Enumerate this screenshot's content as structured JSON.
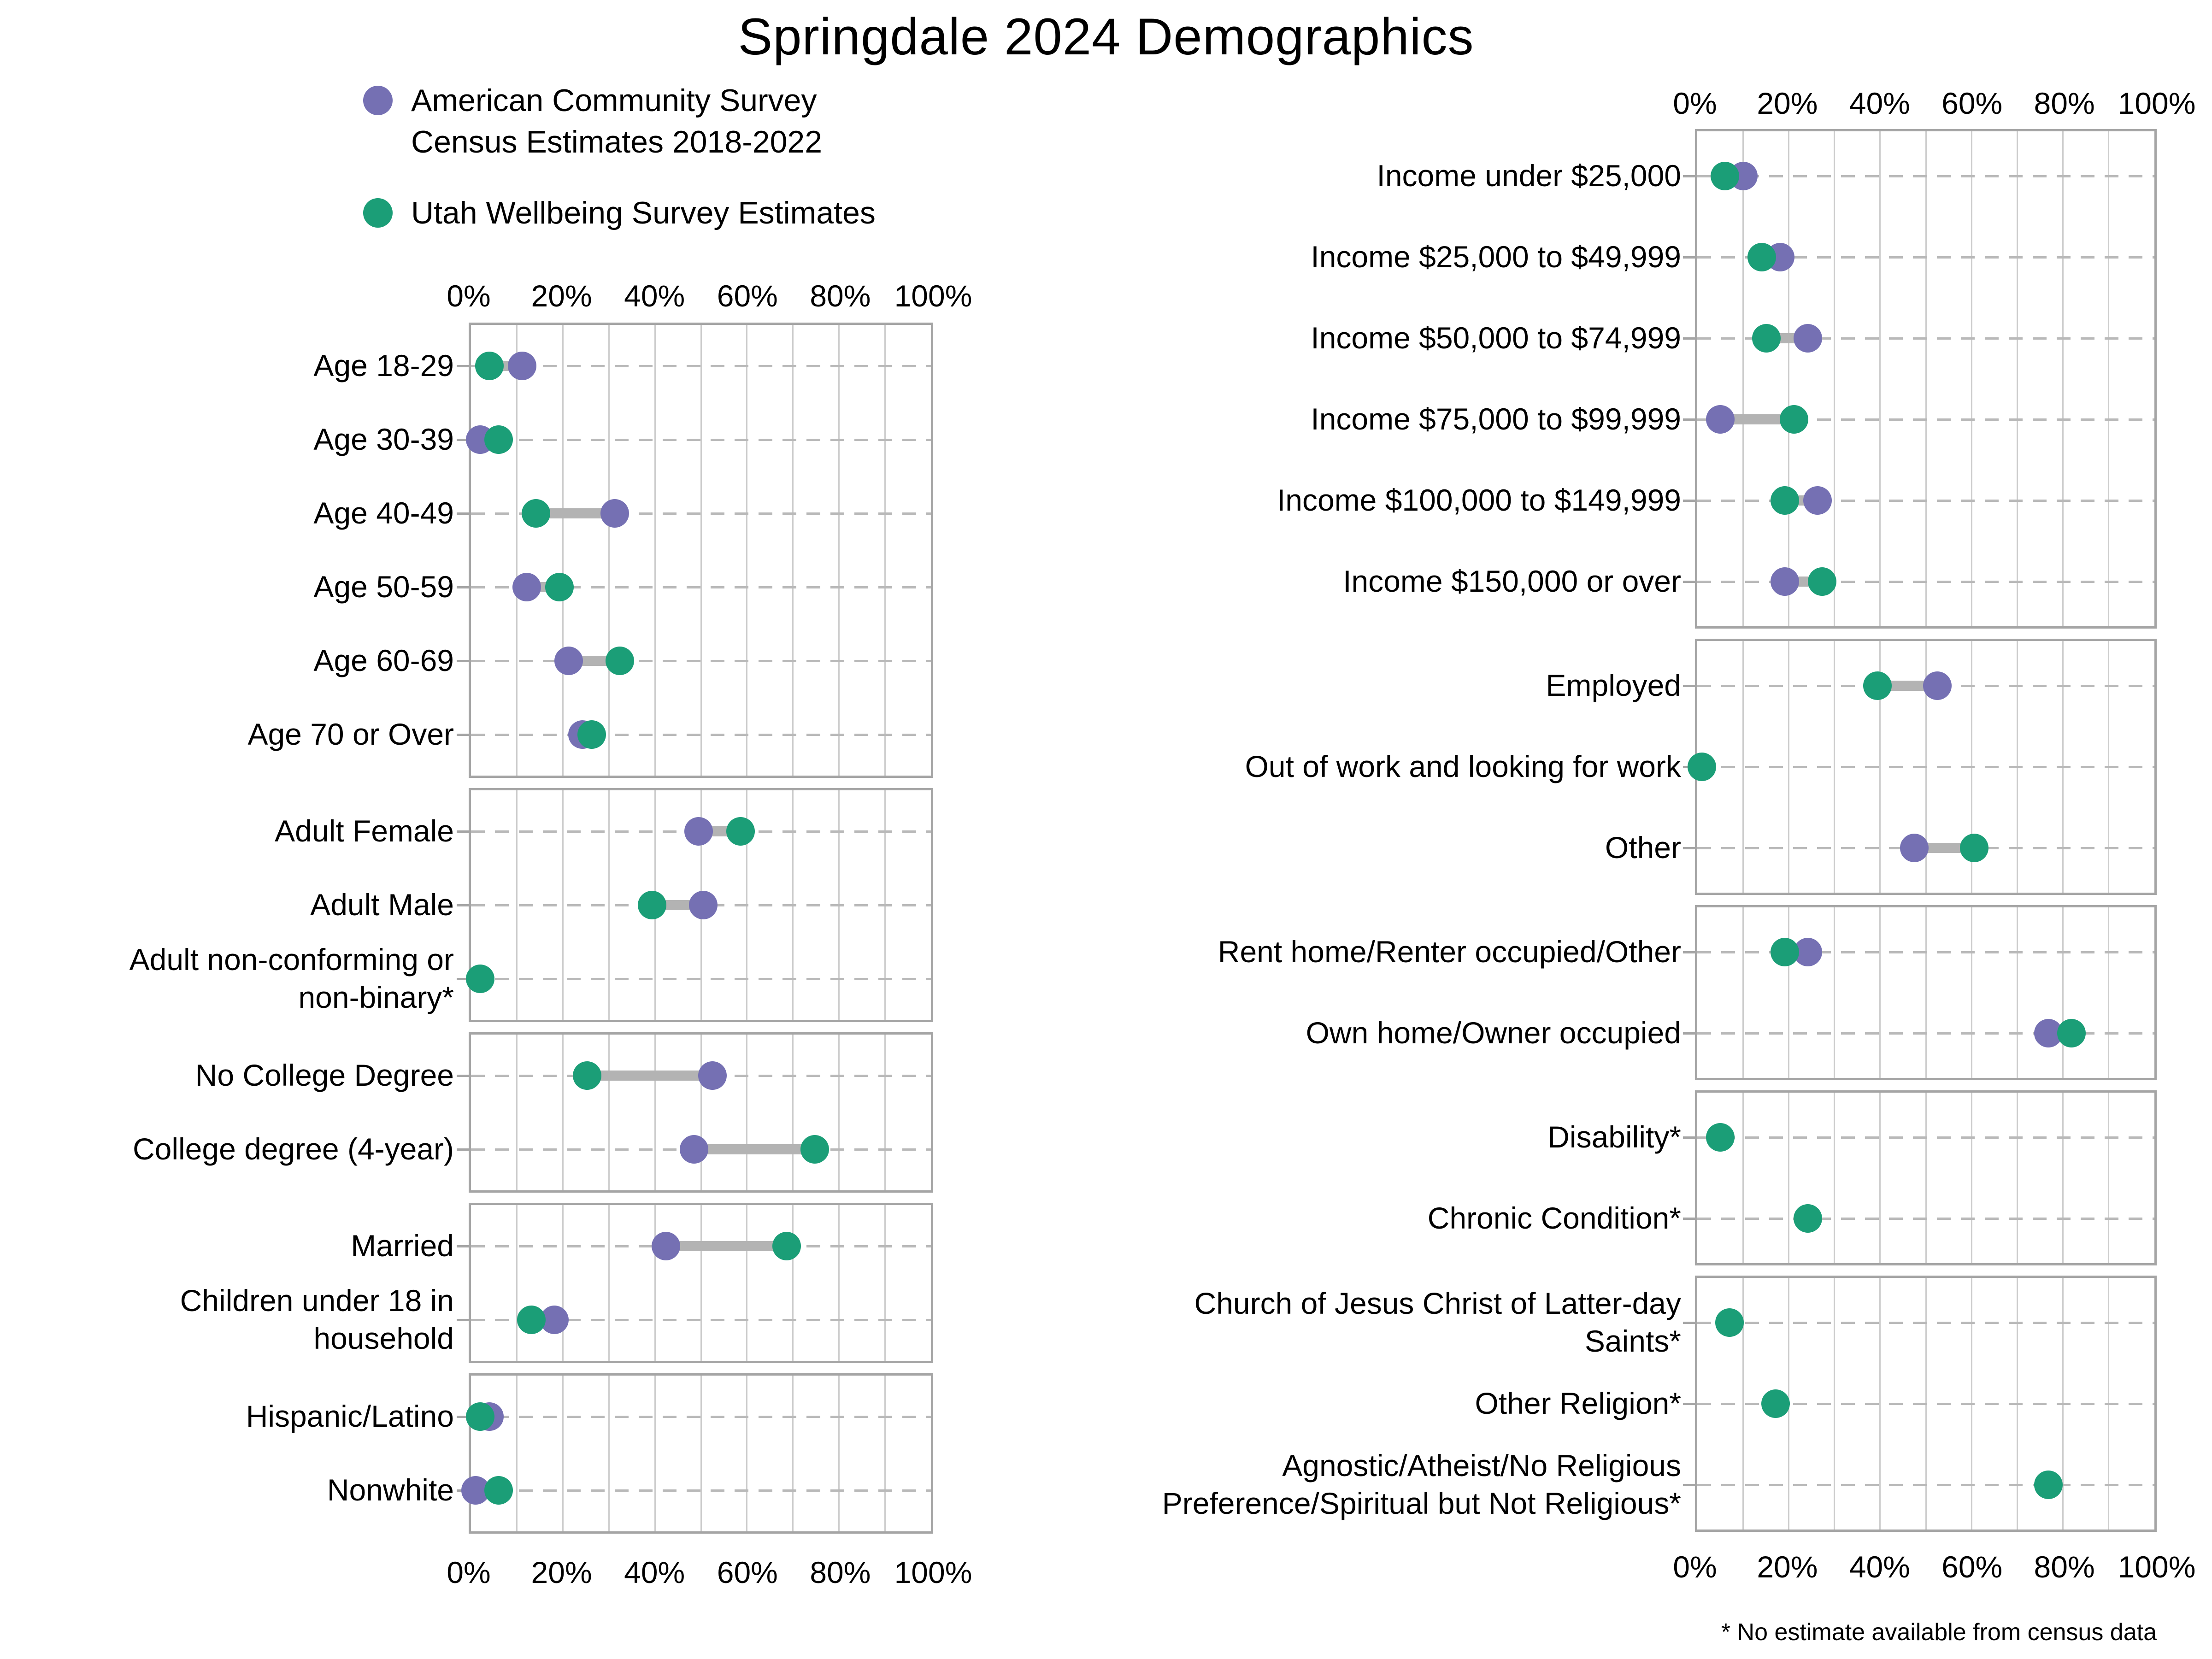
{
  "title": "Springdale 2024 Demographics",
  "legend": {
    "census_label": "American Community Survey\nCensus Estimates 2018-2022",
    "wellbeing_label": "Utah Wellbeing Survey Estimates"
  },
  "footnote": "* No estimate available from census data",
  "colors": {
    "census": "#7570b3",
    "wellbeing": "#1b9e77",
    "connector": "#b3b3b3",
    "gridline": "#cdcdcd",
    "panel_border": "#a5a5a5",
    "dash_line": "#b9b9b9",
    "text": "#000000"
  },
  "chart_data": {
    "type": "dumbbell",
    "title": "Springdale 2024 Demographics",
    "unit": "percent",
    "axis": {
      "min": 0,
      "max": 100,
      "minor_step": 10,
      "tick_values": [
        0,
        20,
        40,
        60,
        80,
        100
      ],
      "tick_labels": [
        "0%",
        "20%",
        "40%",
        "60%",
        "80%",
        "100%"
      ],
      "grid": true
    },
    "series": [
      {
        "id": "census",
        "name": "American Community Survey Census Estimates 2018-2022",
        "color": "#7570b3"
      },
      {
        "id": "wellbeing",
        "name": "Utah Wellbeing Survey Estimates",
        "color": "#1b9e77"
      }
    ],
    "columns": [
      {
        "panels": [
          {
            "rows": [
              {
                "label": "Age 18-29",
                "census": 11,
                "wellbeing": 4
              },
              {
                "label": "Age 30-39",
                "census": 2,
                "wellbeing": 6
              },
              {
                "label": "Age 40-49",
                "census": 31,
                "wellbeing": 14
              },
              {
                "label": "Age 50-59",
                "census": 12,
                "wellbeing": 19
              },
              {
                "label": "Age 60-69",
                "census": 21,
                "wellbeing": 32
              },
              {
                "label": "Age 70 or Over",
                "census": 24,
                "wellbeing": 26
              }
            ]
          },
          {
            "rows": [
              {
                "label": "Adult Female",
                "census": 49,
                "wellbeing": 58
              },
              {
                "label": "Adult Male",
                "census": 50,
                "wellbeing": 39
              },
              {
                "label": "Adult non-conforming or\nnon-binary*",
                "census": null,
                "wellbeing": 2
              }
            ]
          },
          {
            "rows": [
              {
                "label": "No College Degree",
                "census": 52,
                "wellbeing": 25
              },
              {
                "label": "College degree (4-year)",
                "census": 48,
                "wellbeing": 74
              }
            ]
          },
          {
            "rows": [
              {
                "label": "Married",
                "census": 42,
                "wellbeing": 68
              },
              {
                "label": "Children under 18 in\nhousehold",
                "census": 18,
                "wellbeing": 13
              }
            ]
          },
          {
            "rows": [
              {
                "label": "Hispanic/Latino",
                "census": 4,
                "wellbeing": 2
              },
              {
                "label": "Nonwhite",
                "census": 1,
                "wellbeing": 6
              }
            ]
          }
        ]
      },
      {
        "panels": [
          {
            "rows": [
              {
                "label": "Income under $25,000",
                "census": 10,
                "wellbeing": 6
              },
              {
                "label": "Income $25,000 to $49,999",
                "census": 18,
                "wellbeing": 14
              },
              {
                "label": "Income $50,000 to $74,999",
                "census": 24,
                "wellbeing": 15
              },
              {
                "label": "Income $75,000 to $99,999",
                "census": 5,
                "wellbeing": 21
              },
              {
                "label": "Income $100,000 to $149,999",
                "census": 26,
                "wellbeing": 19
              },
              {
                "label": "Income $150,000 or over",
                "census": 19,
                "wellbeing": 27
              }
            ]
          },
          {
            "rows": [
              {
                "label": "Employed",
                "census": 52,
                "wellbeing": 39
              },
              {
                "label": "Out of work and looking for work",
                "census": null,
                "wellbeing": 1
              },
              {
                "label": "Other",
                "census": 47,
                "wellbeing": 60
              }
            ]
          },
          {
            "rows": [
              {
                "label": "Rent home/Renter occupied/Other",
                "census": 24,
                "wellbeing": 19
              },
              {
                "label": "Own home/Owner occupied",
                "census": 76,
                "wellbeing": 81
              }
            ]
          },
          {
            "rows": [
              {
                "label": "Disability*",
                "census": null,
                "wellbeing": 5
              },
              {
                "label": "Chronic Condition*",
                "census": null,
                "wellbeing": 24
              }
            ]
          },
          {
            "rows": [
              {
                "label": "Church of Jesus Christ of Latter-day\nSaints*",
                "census": null,
                "wellbeing": 7
              },
              {
                "label": "Other Religion*",
                "census": null,
                "wellbeing": 17
              },
              {
                "label": "Agnostic/Atheist/No Religious\nPreference/Spiritual but Not Religious*",
                "census": null,
                "wellbeing": 76
              }
            ]
          }
        ]
      }
    ]
  }
}
